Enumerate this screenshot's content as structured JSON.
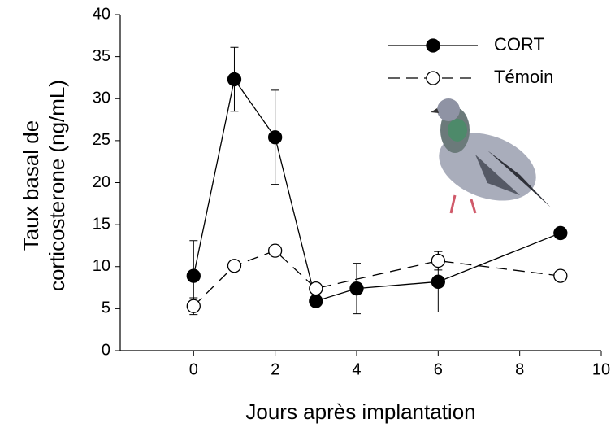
{
  "chart_data": {
    "type": "line",
    "x_label": "Jours après implantation",
    "y_label": [
      "Taux basal de",
      "corticosterone (ng/mL)"
    ],
    "xlim": [
      -1.8,
      10
    ],
    "xticks": [
      0,
      2,
      4,
      6,
      8,
      10
    ],
    "ylim": [
      0,
      40
    ],
    "yticks": [
      0,
      5,
      10,
      15,
      20,
      25,
      30,
      35,
      40
    ],
    "grid": false,
    "legend": "upper right",
    "series": [
      {
        "name": "CORT",
        "color": "#000000",
        "line_style": "solid",
        "marker": "filled",
        "x": [
          0,
          1,
          2,
          3,
          4,
          6,
          9
        ],
        "values": [
          8.9,
          32.3,
          25.4,
          5.9,
          7.4,
          8.2,
          14.0
        ],
        "errors": [
          4.2,
          3.8,
          5.6,
          null,
          3.0,
          3.6,
          null
        ]
      },
      {
        "name": "Témoin",
        "color": "#000000",
        "line_style": "dashed",
        "marker": "open",
        "x": [
          0,
          1,
          2,
          3,
          6,
          9
        ],
        "values": [
          5.3,
          10.1,
          11.9,
          7.4,
          10.7,
          8.9
        ],
        "errors": [
          1.0,
          null,
          null,
          null,
          1.1,
          null
        ]
      }
    ]
  }
}
